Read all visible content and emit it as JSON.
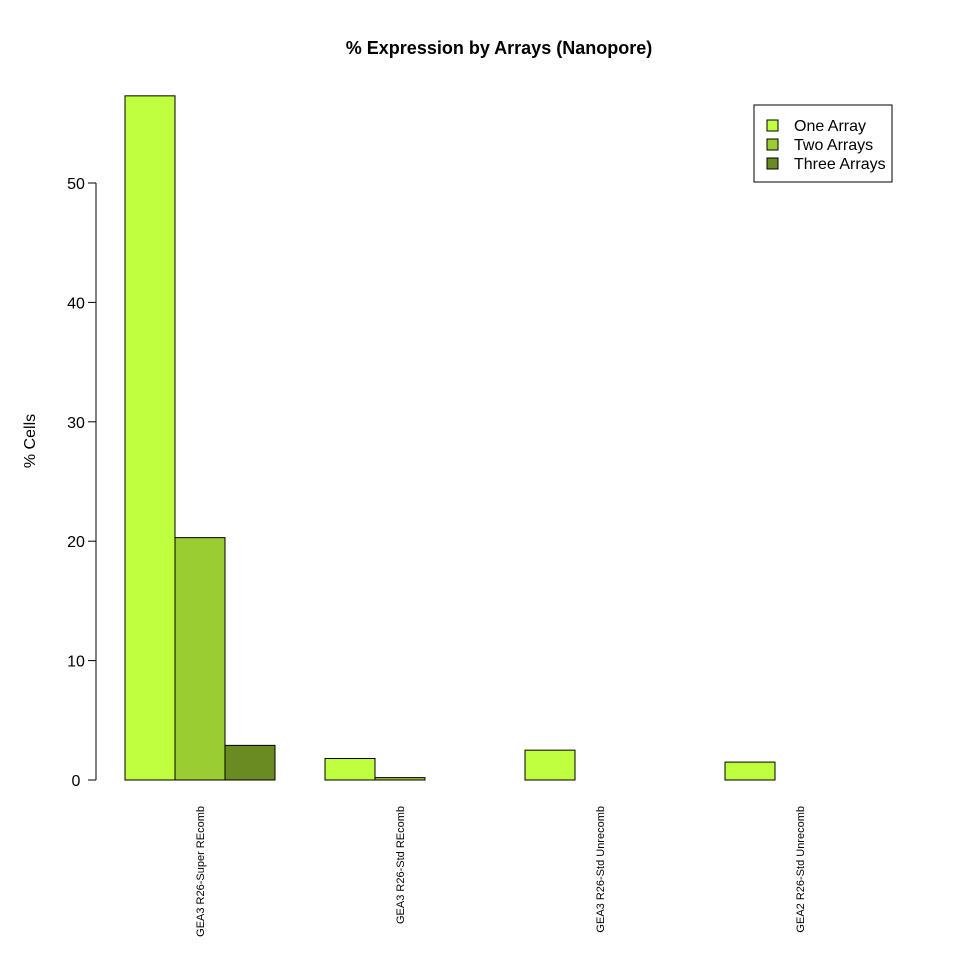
{
  "chart_data": {
    "type": "bar",
    "title": "% Expression by Arrays (Nanopore)",
    "xlabel": "",
    "ylabel": "% Cells",
    "ylim": [
      0,
      57.5
    ],
    "yticks": [
      0,
      10,
      20,
      30,
      40,
      50
    ],
    "categories": [
      "GEA3 R26-Super REcomb",
      "GEA3 R26-Std REcomb",
      "GEA3 R26-Std Unrecomb",
      "GEA2 R26-Std Unrecomb"
    ],
    "series": [
      {
        "name": "One Array",
        "color": "#c0ff3e",
        "values": [
          57.3,
          1.8,
          2.5,
          1.5
        ]
      },
      {
        "name": "Two Arrays",
        "color": "#9acd32",
        "values": [
          20.3,
          0.2,
          0,
          0
        ]
      },
      {
        "name": "Three Arrays",
        "color": "#698b22",
        "values": [
          2.9,
          0,
          0,
          0
        ]
      }
    ],
    "legend_position": "top-right",
    "grid": false
  }
}
